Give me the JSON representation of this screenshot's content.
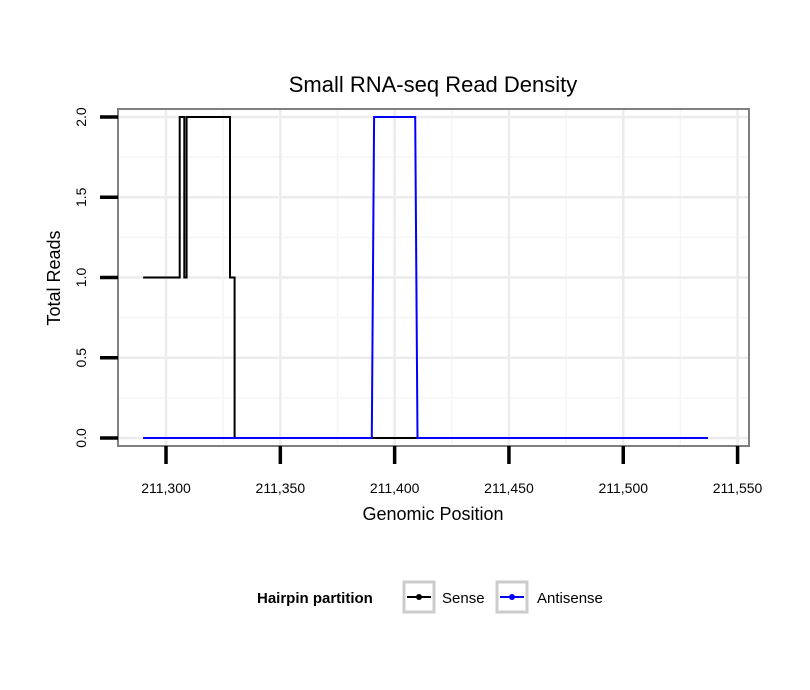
{
  "chart_data": {
    "type": "line",
    "title": "Small RNA-seq Read Density",
    "xlabel": "Genomic Position",
    "ylabel": "Total Reads",
    "xlim": [
      211279,
      211555
    ],
    "ylim": [
      -0.05,
      2.05
    ],
    "x_ticks": [
      211300,
      211350,
      211400,
      211450,
      211500,
      211550
    ],
    "x_tick_labels": [
      "211,300",
      "211,350",
      "211,400",
      "211,450",
      "211,500",
      "211,550"
    ],
    "y_ticks": [
      0,
      0.5,
      1,
      1.5,
      2
    ],
    "y_tick_labels": [
      "0.0",
      "0.5",
      "1.0",
      "1.5",
      "2.0"
    ],
    "grid": true,
    "legend": {
      "title": "Hairpin partition",
      "position": "bottom",
      "entries": [
        "Sense",
        "Antisense"
      ]
    },
    "series": [
      {
        "name": "Sense",
        "color": "#000000",
        "x": [
          211290,
          211306,
          211306,
          211308,
          211308,
          211309,
          211309,
          211311,
          211311,
          211328,
          211328,
          211330,
          211330,
          211332,
          211336,
          211400,
          211450,
          211500,
          211537
        ],
        "y": [
          1,
          1,
          2,
          2,
          1,
          1,
          2,
          2,
          2,
          2,
          1,
          1,
          0,
          0,
          0,
          0,
          0,
          0,
          0
        ]
      },
      {
        "name": "Antisense",
        "color": "#0000ff",
        "x": [
          211290,
          211330,
          211390,
          211391,
          211409,
          211410,
          211450,
          211500,
          211537
        ],
        "y": [
          0,
          0,
          0,
          2,
          2,
          0,
          0,
          0,
          0
        ]
      }
    ]
  }
}
